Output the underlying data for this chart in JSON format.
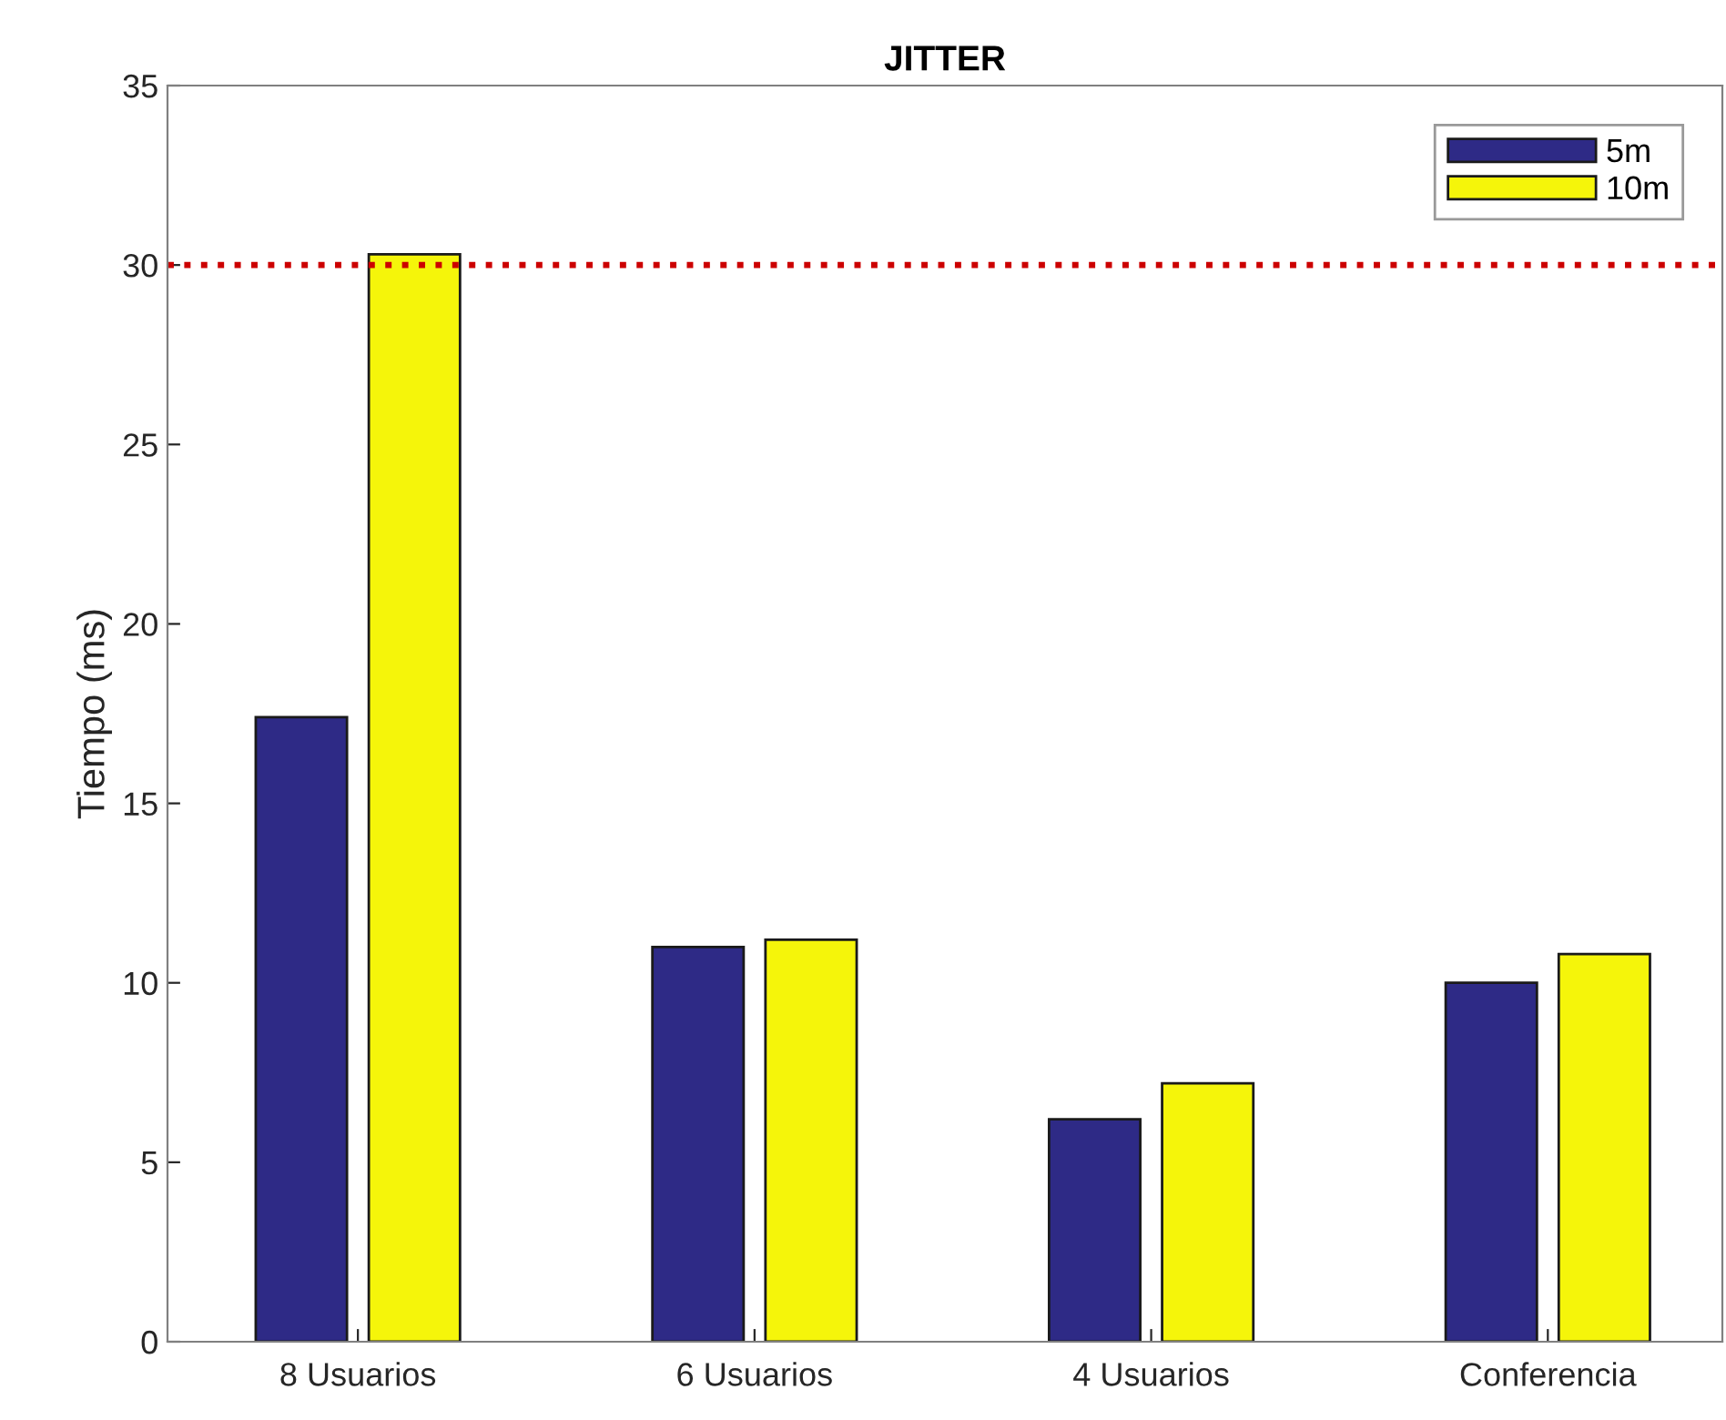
{
  "chart_data": {
    "type": "bar",
    "title": "JITTER",
    "ylabel": "Tiempo (ms)",
    "categories": [
      "8 Usuarios",
      "6 Usuarios",
      "4 Usuarios",
      "Conferencia"
    ],
    "series": [
      {
        "name": "5m",
        "color": "#2e2a86",
        "values": [
          17.4,
          11.0,
          6.2,
          10.0
        ]
      },
      {
        "name": "10m",
        "color": "#f5f50a",
        "values": [
          30.3,
          11.2,
          7.2,
          10.8
        ]
      }
    ],
    "ylim": [
      0,
      35
    ],
    "yticks": [
      0,
      5,
      10,
      15,
      20,
      25,
      30,
      35
    ],
    "ref_lines": [
      {
        "axis": "y",
        "value": 30,
        "color": "#cc0000",
        "line_style": "dotted"
      }
    ],
    "grid": false,
    "legend": "top right"
  }
}
